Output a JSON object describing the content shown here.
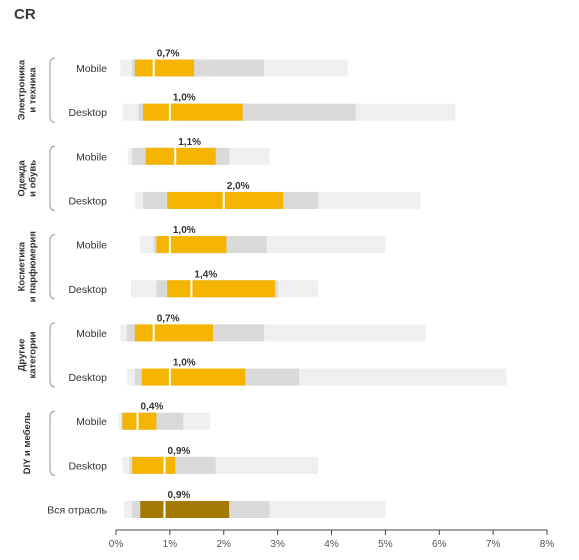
{
  "page": {
    "title": "CR"
  },
  "colors": {
    "outer": "#efefef",
    "mid": "#d9d9d9",
    "inner": "#f4b400",
    "inner_total": "#a37a05",
    "median_line": "#ffffff",
    "axis": "#444444"
  },
  "chart_data": {
    "type": "box",
    "title": "CR",
    "xlabel": "",
    "ylabel": "",
    "xlim": [
      0,
      8
    ],
    "x_ticks": [
      {
        "value": 0,
        "label": "0%"
      },
      {
        "value": 1,
        "label": "1%"
      },
      {
        "value": 2,
        "label": "2%"
      },
      {
        "value": 3,
        "label": "3%"
      },
      {
        "value": 4,
        "label": "4%"
      },
      {
        "value": 5,
        "label": "5%"
      },
      {
        "value": 6,
        "label": "6%"
      },
      {
        "value": 7,
        "label": "7%"
      },
      {
        "value": 8,
        "label": "8%"
      }
    ],
    "groups": [
      {
        "label": "Электроника и техника",
        "lines": [
          "Электроника",
          "и техника"
        ],
        "rows": [
          0,
          1
        ]
      },
      {
        "label": "Одежда и обувь",
        "lines": [
          "Одежда",
          "и обувь"
        ],
        "rows": [
          2,
          3
        ]
      },
      {
        "label": "Косметика и парфюмерия",
        "lines": [
          "Косметика",
          "и парфюмерия"
        ],
        "rows": [
          4,
          5
        ]
      },
      {
        "label": "Другие категории",
        "lines": [
          "Другие",
          "категории"
        ],
        "rows": [
          6,
          7
        ]
      },
      {
        "label": "DIY и мебель",
        "lines": [
          "DIY и мебель"
        ],
        "rows": [
          8,
          9
        ]
      }
    ],
    "rows": [
      {
        "label": "Mobile",
        "outer": [
          0.08,
          4.3
        ],
        "mid": [
          0.3,
          2.75
        ],
        "inner": [
          0.35,
          1.45
        ],
        "median": 0.7,
        "median_label": "0,7%"
      },
      {
        "label": "Desktop",
        "outer": [
          0.12,
          6.3
        ],
        "mid": [
          0.42,
          4.45
        ],
        "inner": [
          0.5,
          2.35
        ],
        "median": 1.0,
        "median_label": "1,0%"
      },
      {
        "label": "Mobile",
        "outer": [
          0.22,
          2.85
        ],
        "mid": [
          0.3,
          2.1
        ],
        "inner": [
          0.55,
          1.85
        ],
        "median": 1.1,
        "median_label": "1,1%"
      },
      {
        "label": "Desktop",
        "outer": [
          0.35,
          5.65
        ],
        "mid": [
          0.5,
          3.75
        ],
        "inner": [
          0.95,
          3.1
        ],
        "median": 2.0,
        "median_label": "2,0%"
      },
      {
        "label": "Mobile",
        "outer": [
          0.45,
          5.0
        ],
        "mid": [
          0.7,
          2.8
        ],
        "inner": [
          0.75,
          2.05
        ],
        "median": 1.0,
        "median_label": "1,0%"
      },
      {
        "label": "Desktop",
        "outer": [
          0.28,
          3.75
        ],
        "mid": [
          0.75,
          3.0
        ],
        "inner": [
          0.95,
          2.95
        ],
        "median": 1.4,
        "median_label": "1,4%"
      },
      {
        "label": "Mobile",
        "outer": [
          0.08,
          5.75
        ],
        "mid": [
          0.2,
          2.75
        ],
        "inner": [
          0.35,
          1.8
        ],
        "median": 0.7,
        "median_label": "0,7%"
      },
      {
        "label": "Desktop",
        "outer": [
          0.2,
          7.25
        ],
        "mid": [
          0.35,
          3.4
        ],
        "inner": [
          0.48,
          2.4
        ],
        "median": 1.0,
        "median_label": "1,0%"
      },
      {
        "label": "Mobile",
        "outer": [
          0.05,
          1.75
        ],
        "mid": [
          0.1,
          1.25
        ],
        "inner": [
          0.12,
          0.75
        ],
        "median": 0.4,
        "median_label": "0,4%"
      },
      {
        "label": "Desktop",
        "outer": [
          0.12,
          3.75
        ],
        "mid": [
          0.25,
          1.85
        ],
        "inner": [
          0.3,
          1.1
        ],
        "median": 0.9,
        "median_label": "0,9%"
      },
      {
        "label": "Вся отрасль",
        "outer": [
          0.15,
          5.0
        ],
        "mid": [
          0.3,
          2.85
        ],
        "inner": [
          0.45,
          2.1
        ],
        "median": 0.9,
        "median_label": "0,9%",
        "total": true
      }
    ]
  }
}
